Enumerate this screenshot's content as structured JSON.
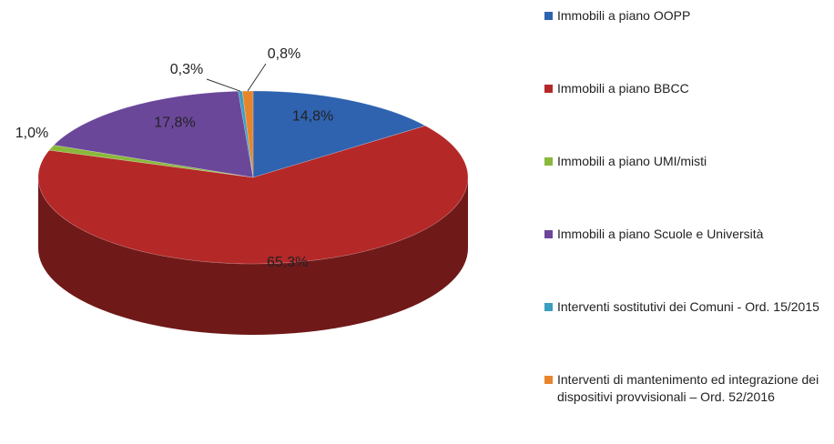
{
  "chart_data": {
    "type": "pie",
    "categories": [
      "Immobili a piano OOPP",
      "Immobili a piano BBCC",
      "Immobili a piano UMI/misti",
      "Immobili a piano Scuole e Università",
      "Interventi sostitutivi dei Comuni - Ord. 15/2015",
      "Interventi di mantenimento ed integrazione dei dispositivi provvisionali – Ord. 52/2016"
    ],
    "values": [
      14.8,
      65.3,
      1.0,
      17.8,
      0.3,
      0.8
    ],
    "value_labels": [
      "14,8%",
      "65,3%",
      "1,0%",
      "17,8%",
      "0,3%",
      "0,8%"
    ],
    "colors": [
      "#2f63b0",
      "#b42828",
      "#8ab83b",
      "#6b479a",
      "#3a9fc0",
      "#e8852c"
    ],
    "legend": "right"
  }
}
